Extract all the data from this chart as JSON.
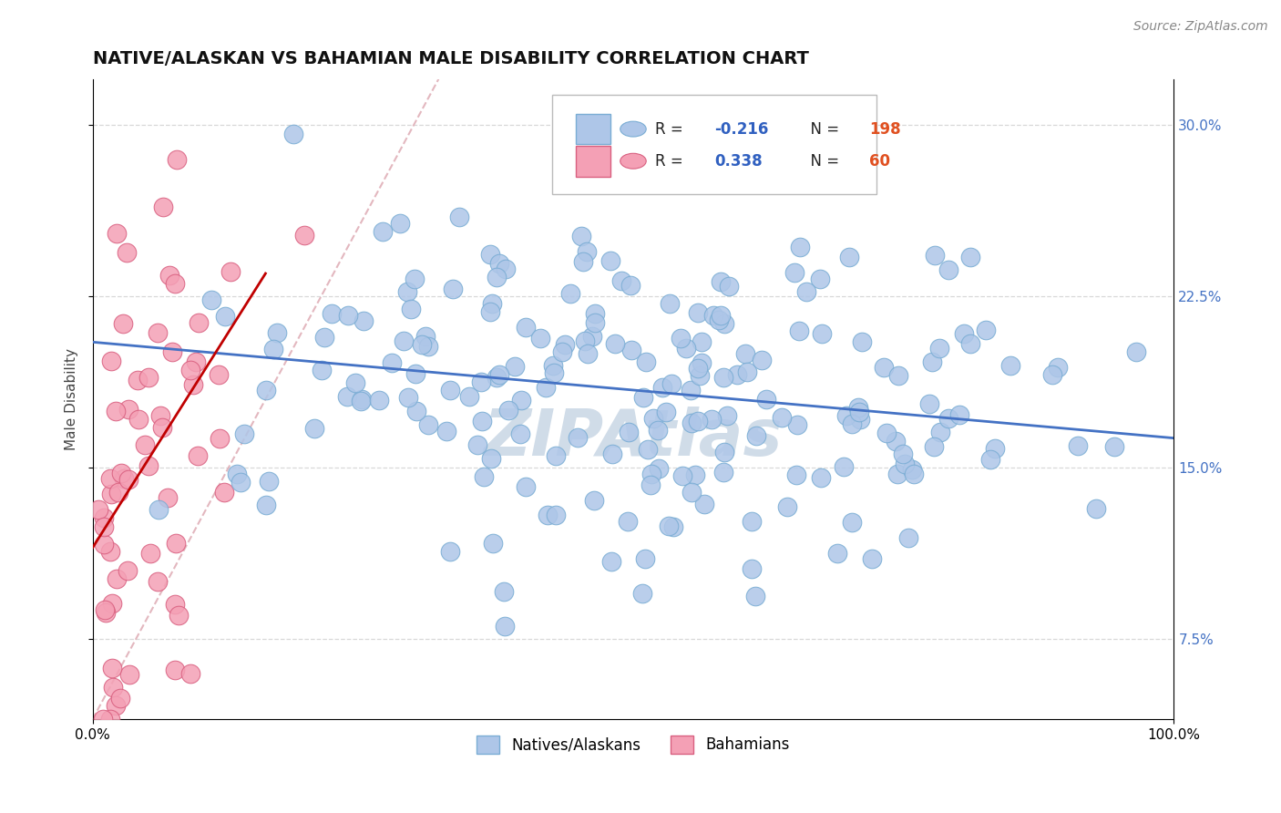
{
  "title": "NATIVE/ALASKAN VS BAHAMIAN MALE DISABILITY CORRELATION CHART",
  "source_text": "Source: ZipAtlas.com",
  "ylabel": "Male Disability",
  "xlim": [
    0.0,
    1.0
  ],
  "ylim": [
    0.04,
    0.32
  ],
  "xtick_labels": [
    "0.0%",
    "100.0%"
  ],
  "ytick_values": [
    0.075,
    0.15,
    0.225,
    0.3
  ],
  "ytick_labels": [
    "7.5%",
    "15.0%",
    "22.5%",
    "30.0%"
  ],
  "legend_label_1": "Natives/Alaskans",
  "legend_label_2": "Bahamians",
  "R1": "-0.216",
  "N1": "198",
  "R2": "0.338",
  "N2": "60",
  "scatter1_color": "#aec6e8",
  "scatter1_edge": "#7aadd4",
  "scatter2_color": "#f4a0b5",
  "scatter2_edge": "#d96080",
  "line1_color": "#4472c4",
  "line2_color": "#c00000",
  "diagonal_color": "#e0b0b8",
  "background_color": "#ffffff",
  "grid_color": "#d8d8d8",
  "watermark_text": "ZIPAtlas",
  "watermark_color": "#d0dce8",
  "title_fontsize": 14,
  "label_fontsize": 11,
  "tick_fontsize": 11,
  "source_fontsize": 10,
  "seed": 7,
  "line1_x0": 0.0,
  "line1_y0": 0.205,
  "line1_x1": 1.0,
  "line1_y1": 0.163,
  "line2_x0": 0.0,
  "line2_y0": 0.115,
  "line2_x1": 0.16,
  "line2_y1": 0.235
}
